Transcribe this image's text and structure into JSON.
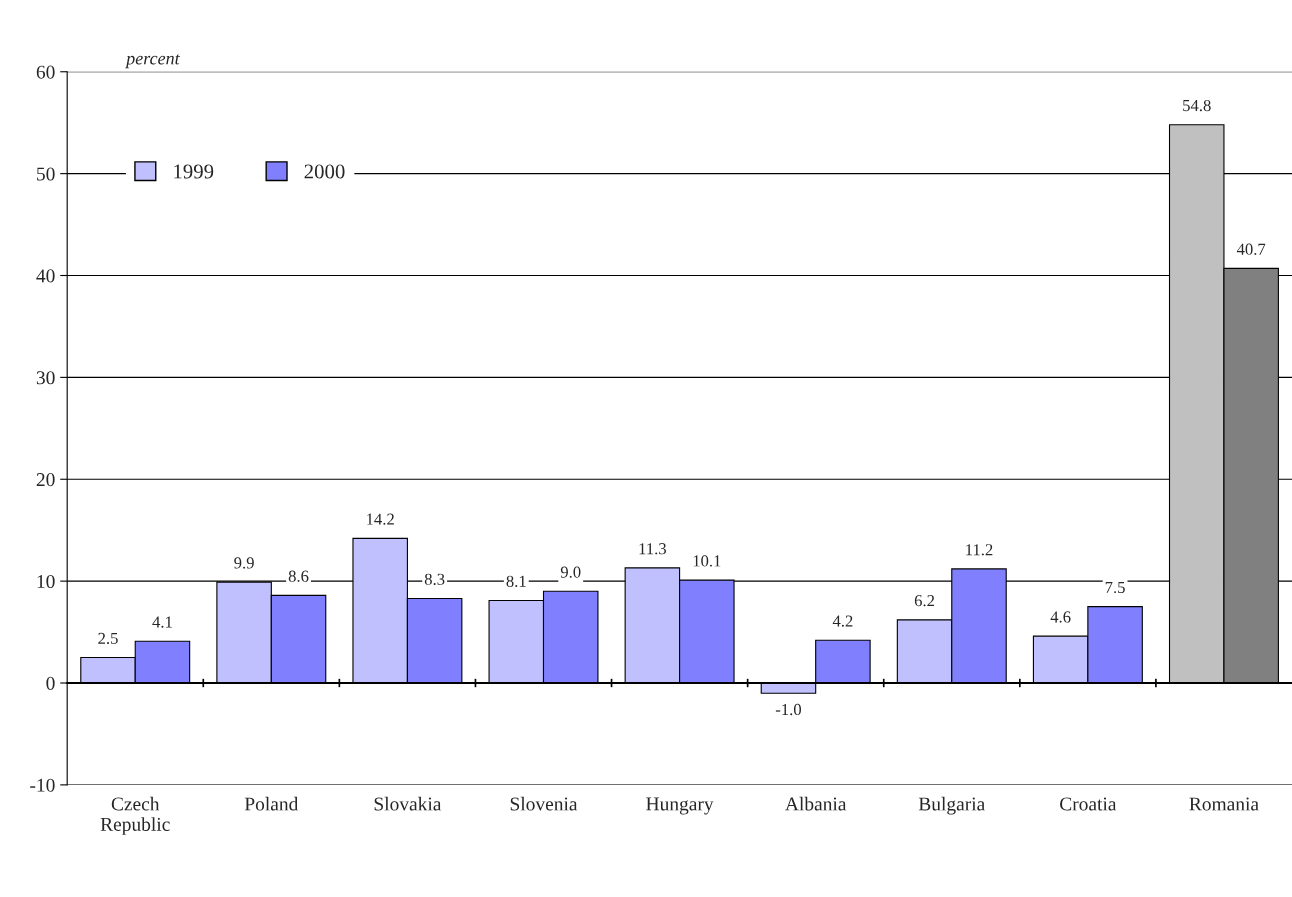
{
  "chart_data": {
    "type": "bar",
    "ylabel": "percent",
    "categories": [
      "Czech\nRepublic",
      "Poland",
      "Slovakia",
      "Slovenia",
      "Hungary",
      "Albania",
      "Bulgaria",
      "Croatia",
      "Romania"
    ],
    "series": [
      {
        "name": "1999",
        "color": "#c0c0ff",
        "colors": [
          "#c0c0ff",
          "#c0c0ff",
          "#c0c0ff",
          "#c0c0ff",
          "#c0c0ff",
          "#c0c0ff",
          "#c0c0ff",
          "#c0c0ff",
          "#c0c0c0"
        ],
        "values": [
          2.5,
          9.9,
          14.2,
          8.1,
          11.3,
          -1.0,
          6.2,
          4.6,
          54.8
        ],
        "value_labels": [
          "2.5",
          "9.9",
          "14.2",
          "8.1",
          "11.3",
          "-1.0",
          "6.2",
          "4.6",
          "54.8"
        ]
      },
      {
        "name": "2000",
        "color": "#8080ff",
        "colors": [
          "#8080ff",
          "#8080ff",
          "#8080ff",
          "#8080ff",
          "#8080ff",
          "#8080ff",
          "#8080ff",
          "#8080ff",
          "#808080"
        ],
        "values": [
          4.1,
          8.6,
          8.3,
          9.0,
          10.1,
          4.2,
          11.2,
          7.5,
          40.7
        ],
        "value_labels": [
          "4.1",
          "8.6",
          "8.3",
          "9.0",
          "10.1",
          "4.2",
          "11.2",
          "7.5",
          "40.7"
        ]
      }
    ],
    "ylim": [
      -10,
      60
    ],
    "yticks": [
      -10,
      0,
      10,
      20,
      30,
      40,
      50,
      60
    ],
    "grid": "y",
    "legend": "top left"
  }
}
